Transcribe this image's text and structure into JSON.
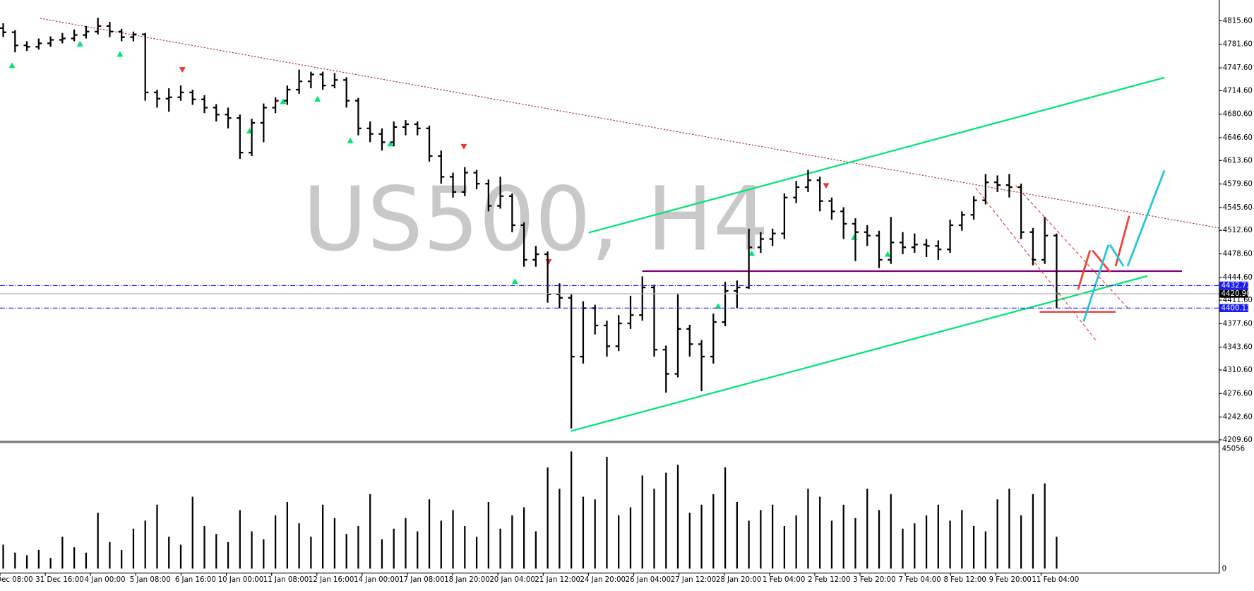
{
  "chart_data": {
    "type": "ohlc",
    "watermark": "US500, H4",
    "bar_color": "#000000",
    "ylim": [
      4208.44,
      4845.67
    ],
    "yticks": [
      {
        "value": 4815.6,
        "label": "4815.60"
      },
      {
        "value": 4781.6,
        "label": "4781.60"
      },
      {
        "value": 4747.6,
        "label": "4747.60"
      },
      {
        "value": 4714.6,
        "label": "4714.60"
      },
      {
        "value": 4680.6,
        "label": "4680.60"
      },
      {
        "value": 4646.6,
        "label": "4646.60"
      },
      {
        "value": 4613.6,
        "label": "4613.60"
      },
      {
        "value": 4579.6,
        "label": "4579.60"
      },
      {
        "value": 4545.6,
        "label": "4545.60"
      },
      {
        "value": 4512.6,
        "label": "4512.60"
      },
      {
        "value": 4478.6,
        "label": "4478.60"
      },
      {
        "value": 4444.6,
        "label": "4444.60"
      },
      {
        "value": 4411.6,
        "label": "4411.60"
      },
      {
        "value": 4377.6,
        "label": "4377.60"
      },
      {
        "value": 4343.6,
        "label": "4343.60"
      },
      {
        "value": 4310.6,
        "label": "4310.60"
      },
      {
        "value": 4276.6,
        "label": "4276.60"
      },
      {
        "value": 4242.6,
        "label": "4242.60"
      },
      {
        "value": 4209.6,
        "label": "4209.60"
      }
    ],
    "price_lines": [
      4432.73,
      {
        "value": 4420.9,
        "label": "4420.90"
      },
      4400.13
    ],
    "price_line_colors": [
      "#1a1aff",
      "#b0b0b0",
      "#1a1aff"
    ],
    "x_labels": [
      "Dec 08:00",
      "31 Dec 16:00",
      "4 Jan 00:00",
      "5 Jan 08:00",
      "6 Jan 16:00",
      "10 Jan 00:00",
      "11 Jan 08:00",
      "12 Jan 16:00",
      "14 Jan 00:00",
      "17 Jan 08:00",
      "18 Jan 20:00",
      "20 Jan 04:00",
      "21 Jan 12:00",
      "24 Jan 20:00",
      "26 Jan 04:00",
      "27 Jan 12:00",
      "28 Jan 20:00",
      "1 Feb 04:00",
      "2 Feb 12:00",
      "3 Feb 20:00",
      "7 Feb 04:00",
      "8 Feb 12:00",
      "9 Feb 20:00",
      "11 Feb 04:00"
    ],
    "ohlc": [
      [
        4805,
        4812,
        4792,
        4799
      ],
      [
        4799,
        4802,
        4770,
        4780
      ],
      [
        4780,
        4786,
        4772,
        4778
      ],
      [
        4778,
        4790,
        4774,
        4783
      ],
      [
        4783,
        4793,
        4778,
        4788
      ],
      [
        4788,
        4798,
        4783,
        4790
      ],
      [
        4790,
        4803,
        4786,
        4795
      ],
      [
        4795,
        4808,
        4790,
        4800
      ],
      [
        4800,
        4820,
        4796,
        4808
      ],
      [
        4808,
        4814,
        4792,
        4800
      ],
      [
        4800,
        4804,
        4786,
        4792
      ],
      [
        4792,
        4800,
        4786,
        4796
      ],
      [
        4796,
        4798,
        4700,
        4712
      ],
      [
        4712,
        4716,
        4690,
        4703
      ],
      [
        4703,
        4718,
        4684,
        4705
      ],
      [
        4705,
        4722,
        4700,
        4712
      ],
      [
        4712,
        4716,
        4694,
        4702
      ],
      [
        4702,
        4708,
        4682,
        4690
      ],
      [
        4690,
        4695,
        4670,
        4680
      ],
      [
        4680,
        4690,
        4660,
        4675
      ],
      [
        4675,
        4680,
        4616,
        4625
      ],
      [
        4625,
        4674,
        4620,
        4668
      ],
      [
        4668,
        4696,
        4640,
        4690
      ],
      [
        4690,
        4705,
        4682,
        4700
      ],
      [
        4700,
        4722,
        4694,
        4716
      ],
      [
        4716,
        4745,
        4710,
        4728
      ],
      [
        4728,
        4742,
        4718,
        4738
      ],
      [
        4738,
        4742,
        4716,
        4722
      ],
      [
        4722,
        4740,
        4718,
        4730
      ],
      [
        4730,
        4734,
        4690,
        4700
      ],
      [
        4700,
        4704,
        4650,
        4660
      ],
      [
        4660,
        4670,
        4640,
        4652
      ],
      [
        4652,
        4660,
        4628,
        4640
      ],
      [
        4640,
        4670,
        4634,
        4662
      ],
      [
        4662,
        4672,
        4650,
        4666
      ],
      [
        4666,
        4670,
        4650,
        4660
      ],
      [
        4660,
        4664,
        4612,
        4620
      ],
      [
        4620,
        4628,
        4580,
        4590
      ],
      [
        4590,
        4596,
        4560,
        4568
      ],
      [
        4568,
        4604,
        4562,
        4596
      ],
      [
        4596,
        4600,
        4572,
        4580
      ],
      [
        4580,
        4586,
        4540,
        4548
      ],
      [
        4548,
        4590,
        4544,
        4562
      ],
      [
        4562,
        4566,
        4510,
        4520
      ],
      [
        4520,
        4524,
        4460,
        4470
      ],
      [
        4470,
        4490,
        4460,
        4478
      ],
      [
        4478,
        4482,
        4408,
        4420
      ],
      [
        4420,
        4436,
        4400,
        4415
      ],
      [
        4415,
        4420,
        4226,
        4330
      ],
      [
        4330,
        4410,
        4320,
        4400
      ],
      [
        4400,
        4405,
        4362,
        4375
      ],
      [
        4375,
        4382,
        4330,
        4345
      ],
      [
        4345,
        4390,
        4338,
        4378
      ],
      [
        4378,
        4418,
        4370,
        4390
      ],
      [
        4390,
        4446,
        4382,
        4430
      ],
      [
        4430,
        4434,
        4330,
        4340
      ],
      [
        4340,
        4346,
        4278,
        4305
      ],
      [
        4305,
        4420,
        4300,
        4370
      ],
      [
        4370,
        4376,
        4330,
        4348
      ],
      [
        4348,
        4354,
        4280,
        4330
      ],
      [
        4330,
        4392,
        4320,
        4380
      ],
      [
        4380,
        4438,
        4374,
        4425
      ],
      [
        4425,
        4440,
        4400,
        4430
      ],
      [
        4430,
        4515,
        4428,
        4488
      ],
      [
        4488,
        4510,
        4480,
        4500
      ],
      [
        4500,
        4515,
        4490,
        4508
      ],
      [
        4508,
        4566,
        4500,
        4560
      ],
      [
        4560,
        4584,
        4552,
        4575
      ],
      [
        4575,
        4600,
        4568,
        4585
      ],
      [
        4585,
        4590,
        4540,
        4555
      ],
      [
        4555,
        4560,
        4528,
        4540
      ],
      [
        4540,
        4546,
        4500,
        4522
      ],
      [
        4522,
        4530,
        4468,
        4510
      ],
      [
        4510,
        4520,
        4490,
        4505
      ],
      [
        4505,
        4512,
        4458,
        4470
      ],
      [
        4470,
        4532,
        4464,
        4495
      ],
      [
        4495,
        4510,
        4478,
        4488
      ],
      [
        4488,
        4508,
        4480,
        4492
      ],
      [
        4492,
        4500,
        4474,
        4490
      ],
      [
        4490,
        4498,
        4470,
        4485
      ],
      [
        4485,
        4528,
        4480,
        4520
      ],
      [
        4520,
        4540,
        4512,
        4535
      ],
      [
        4535,
        4562,
        4528,
        4556
      ],
      [
        4556,
        4594,
        4550,
        4582
      ],
      [
        4582,
        4592,
        4568,
        4578
      ],
      [
        4578,
        4594,
        4560,
        4575
      ],
      [
        4575,
        4580,
        4500,
        4510
      ],
      [
        4510,
        4516,
        4462,
        4470
      ],
      [
        4470,
        4532,
        4464,
        4505
      ],
      [
        4505,
        4508,
        4400,
        4420.9
      ]
    ],
    "volume_color": "#000000",
    "volume_ylim": [
      0,
      45056
    ],
    "volume_ticks": [
      45056,
      0
    ],
    "volume": [
      9000,
      6000,
      5000,
      7000,
      4000,
      12000,
      8000,
      6000,
      21000,
      10000,
      7000,
      15000,
      18000,
      24000,
      12000,
      9000,
      27000,
      16000,
      13000,
      10000,
      22000,
      14000,
      11000,
      20000,
      25000,
      17000,
      12000,
      24000,
      19000,
      13000,
      16000,
      28000,
      11000,
      15000,
      19000,
      14000,
      26000,
      18000,
      22000,
      16000,
      12000,
      25000,
      15000,
      20000,
      23000,
      14000,
      38000,
      30000,
      44000,
      27000,
      26000,
      42000,
      20000,
      23000,
      35000,
      30000,
      36000,
      39000,
      21000,
      24000,
      28000,
      38000,
      25000,
      18000,
      22000,
      24000,
      16000,
      20000,
      30000,
      27000,
      18000,
      24000,
      19000,
      30000,
      22000,
      28000,
      15000,
      17000,
      20000,
      24000,
      18000,
      22000,
      16000,
      14000,
      26000,
      30000,
      20000,
      28000,
      32000,
      12000
    ]
  }
}
